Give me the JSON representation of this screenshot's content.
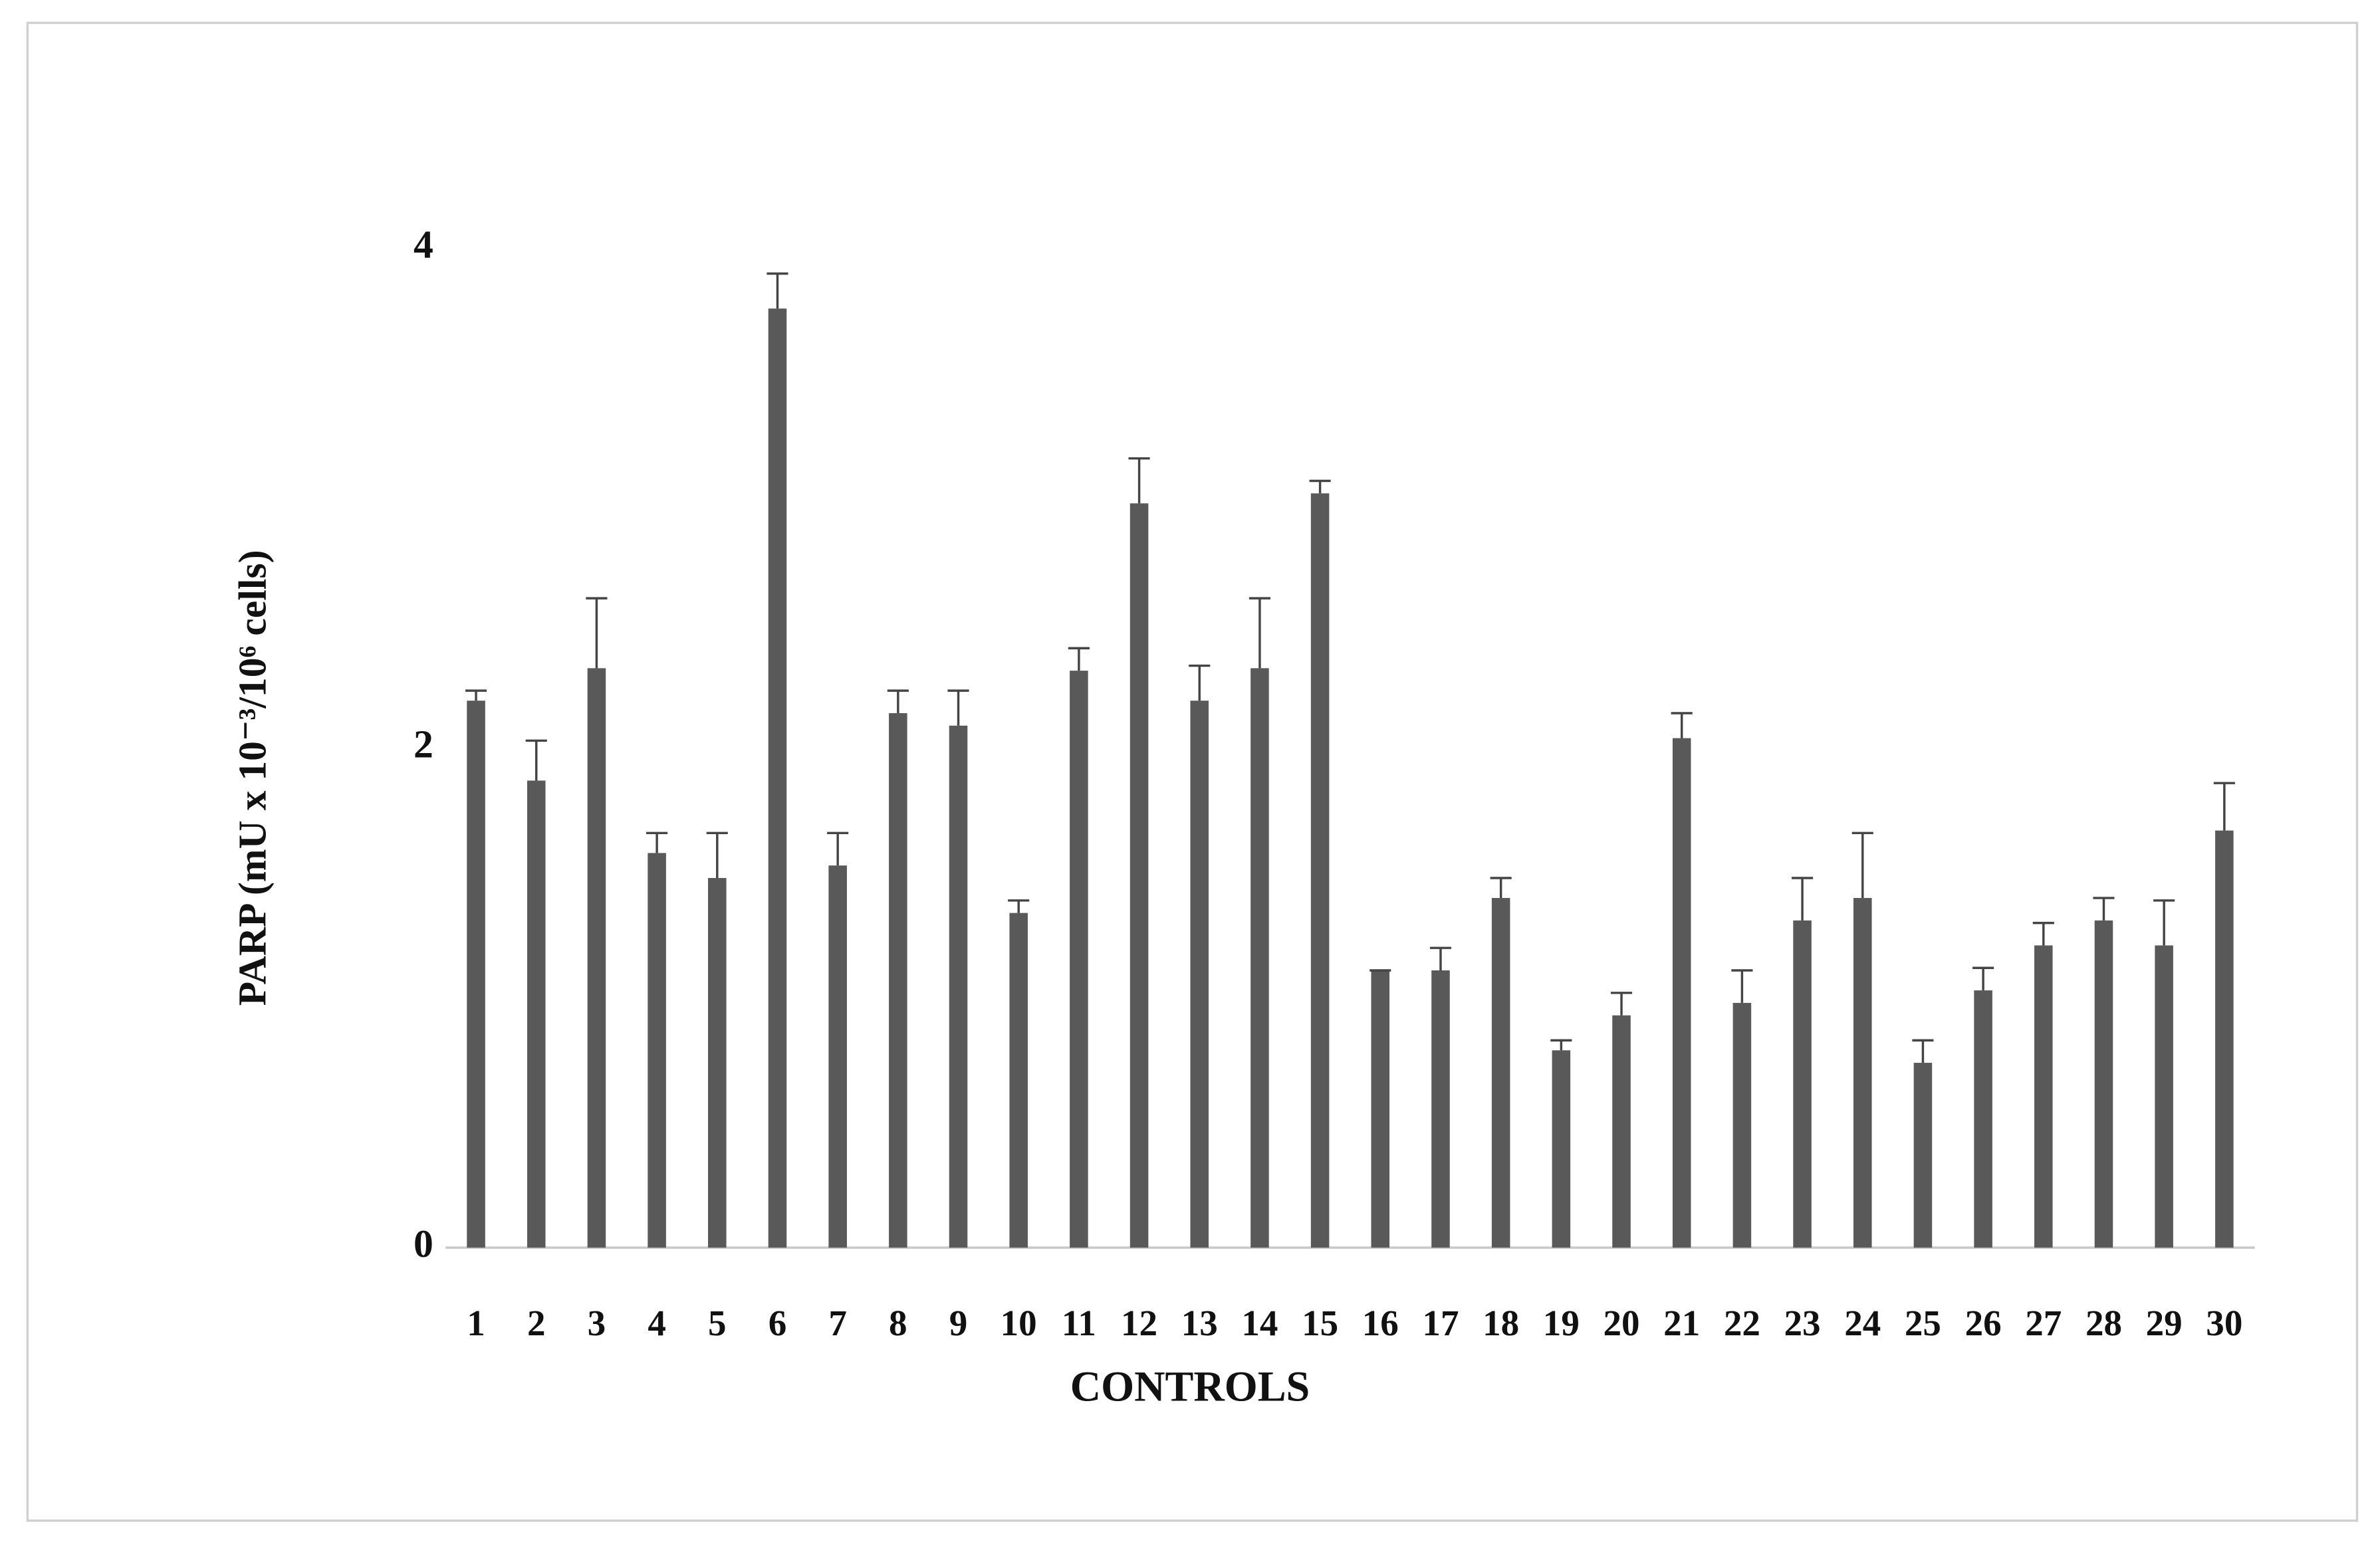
{
  "chart_data": {
    "type": "bar",
    "y_label": "PARP (mU x 10⁻³/10⁶ cells)",
    "x_label": "CONTROLS",
    "categories": [
      "1",
      "2",
      "3",
      "4",
      "5",
      "6",
      "7",
      "8",
      "9",
      "10",
      "11",
      "12",
      "13",
      "14",
      "15",
      "16",
      "17",
      "18",
      "19",
      "20",
      "21",
      "22",
      "23",
      "24",
      "25",
      "26",
      "27",
      "28",
      "29",
      "30"
    ],
    "values": [
      2.19,
      1.87,
      2.32,
      1.58,
      1.48,
      3.76,
      1.53,
      2.14,
      2.09,
      1.34,
      2.31,
      2.98,
      2.19,
      2.32,
      3.02,
      1.11,
      1.11,
      1.4,
      0.79,
      0.93,
      2.04,
      0.98,
      1.31,
      1.4,
      0.74,
      1.03,
      1.21,
      1.31,
      1.21,
      1.67
    ],
    "errors": [
      0.04,
      0.16,
      0.28,
      0.08,
      0.18,
      0.14,
      0.13,
      0.09,
      0.14,
      0.05,
      0.09,
      0.18,
      0.14,
      0.28,
      0.05,
      0,
      0.09,
      0.08,
      0.04,
      0.09,
      0.1,
      0.13,
      0.17,
      0.26,
      0.09,
      0.09,
      0.09,
      0.09,
      0.18,
      0.19
    ],
    "color": "#595959",
    "ylim": [
      0,
      4
    ],
    "yticks": [
      0,
      2,
      4
    ],
    "grid": false
  }
}
